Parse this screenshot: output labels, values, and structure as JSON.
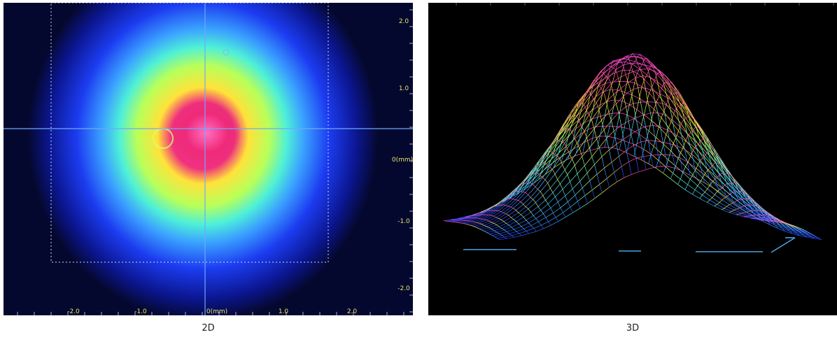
{
  "panels": [
    {
      "id": "2d",
      "caption": "2D",
      "x_tick_labels": [
        "-2.0",
        "-1.0",
        "0(mm)",
        "1.0",
        "2.0"
      ],
      "y_tick_labels": [
        "2.0",
        "1.0",
        "0(mm)",
        "-1.0",
        "-2.0"
      ],
      "colors": {
        "background": "#05082e",
        "crosshair": "#6fa8ff",
        "label": "#e8e36a"
      }
    },
    {
      "id": "3d",
      "caption": "3D",
      "colors": {
        "background": "#000000",
        "base_line": "#4aa3e0"
      }
    }
  ],
  "colormap": [
    "#0a0a6a",
    "#1a3cff",
    "#33d6ff",
    "#9dff6a",
    "#ffe23a",
    "#ff4aa0"
  ]
}
